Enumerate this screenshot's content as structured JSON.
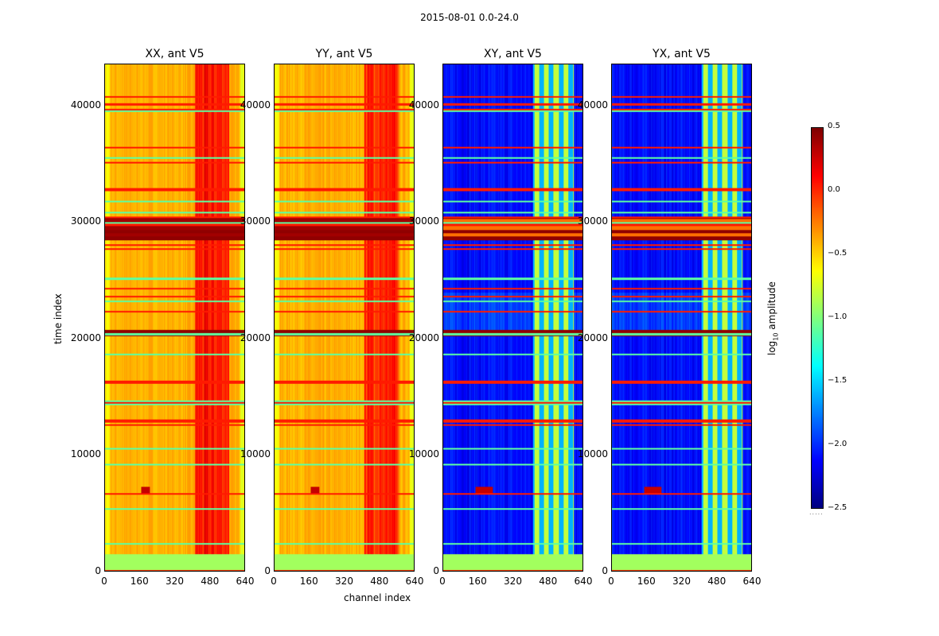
{
  "chart_data": {
    "type": "heatmap",
    "title": "2015-08-01 0.0-24.0",
    "xlabel": "channel index",
    "ylabel": "time index",
    "xlim": [
      0,
      640
    ],
    "ylim": [
      0,
      43600
    ],
    "xticks": [
      "0",
      "160",
      "320",
      "480",
      "640"
    ],
    "yticks": [
      "0",
      "10000",
      "20000",
      "30000",
      "40000"
    ],
    "xtick_values": [
      0,
      160,
      320,
      480,
      640
    ],
    "ytick_values": [
      0,
      10000,
      20000,
      30000,
      40000
    ],
    "colormap": "jet",
    "colorbar": {
      "label": "log10 amplitude",
      "label_base": "log",
      "label_sub": "10",
      "label_rest": " amplitude",
      "range": [
        -2.5,
        0.5
      ],
      "ticks": [
        "0.5",
        "0.0",
        "−0.5",
        "−1.0",
        "−1.5",
        "−2.0",
        "−2.5"
      ],
      "tick_values": [
        0.5,
        0.0,
        -0.5,
        -1.0,
        -1.5,
        -2.0,
        -2.5
      ]
    },
    "panels": [
      {
        "title": "XX, ant V5",
        "base_level": -0.4,
        "band_level": 0.05,
        "band_channels": [
          410,
          570
        ]
      },
      {
        "title": "YY, ant V5",
        "base_level": -0.4,
        "band_level": 0.0,
        "band_channels": [
          410,
          570
        ]
      },
      {
        "title": "XY, ant V5",
        "base_level": -2.1,
        "band_level": -0.8,
        "band_channels": [
          410,
          600
        ]
      },
      {
        "title": "YX, ant V5",
        "base_level": -2.1,
        "band_level": -0.8,
        "band_channels": [
          410,
          600
        ]
      }
    ],
    "flagged_time_ranges": [
      [
        0,
        1500
      ],
      [
        20200,
        20800
      ],
      [
        28500,
        30500
      ]
    ],
    "rfi_spike": {
      "channel": 185,
      "time": 7000
    }
  }
}
